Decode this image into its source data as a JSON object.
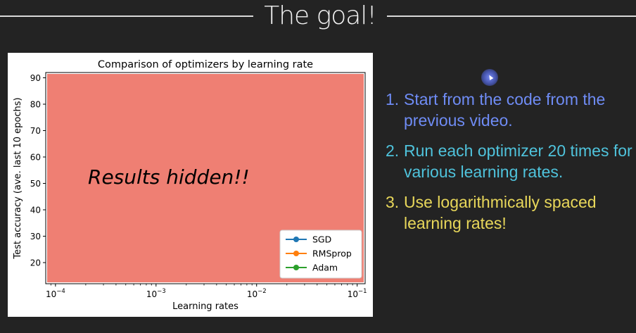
{
  "slide": {
    "title": "The goal!"
  },
  "items": [
    {
      "number": "1.",
      "text": "Start from the code from the previous video.",
      "color": "#6f8cf5"
    },
    {
      "number": "2.",
      "text": "Run each optimizer 20 times for various learning rates.",
      "color": "#4fc3dc"
    },
    {
      "number": "3.",
      "text": "Use logarithmically spaced learning rates!",
      "color": "#e8d75a"
    }
  ],
  "chart_data": {
    "type": "line",
    "title": "Comparison of optimizers by learning rate",
    "xlabel": "Learning rates",
    "ylabel": "Test accuracy (ave. last 10 epochs)",
    "xscale": "log",
    "xlim": [
      8e-05,
      0.12
    ],
    "ylim": [
      12,
      92
    ],
    "x_ticks": [
      {
        "value": 0.0001,
        "base": "10",
        "exp": "−4"
      },
      {
        "value": 0.001,
        "base": "10",
        "exp": "−3"
      },
      {
        "value": 0.01,
        "base": "10",
        "exp": "−2"
      },
      {
        "value": 0.1,
        "base": "10",
        "exp": "−1"
      }
    ],
    "y_ticks": [
      20,
      30,
      40,
      50,
      60,
      70,
      80,
      90
    ],
    "overlay_text": "Results hidden!!",
    "overlay_color": "#ef7f73",
    "legend_position": "lower right",
    "series": [
      {
        "name": "SGD",
        "color": "#1f77b4",
        "values": []
      },
      {
        "name": "RMSprop",
        "color": "#ff7f0e",
        "values": []
      },
      {
        "name": "Adam",
        "color": "#2ca02c",
        "values": []
      }
    ]
  }
}
